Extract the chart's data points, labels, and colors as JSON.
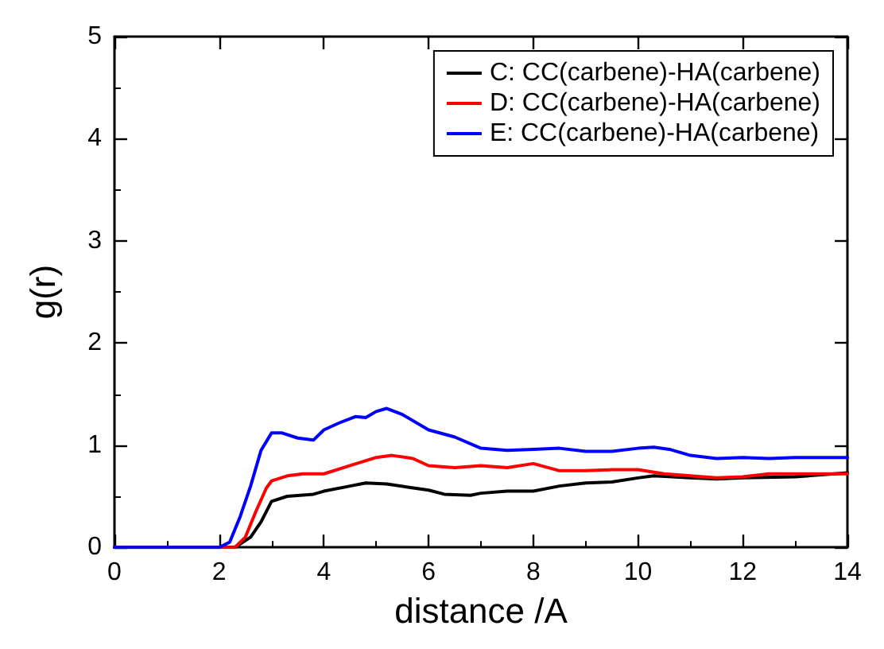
{
  "chart_data": {
    "type": "line",
    "xlabel": "distance /A",
    "ylabel": "g(r)",
    "xlim": [
      0,
      14
    ],
    "ylim": [
      0,
      5
    ],
    "xticks": [
      0,
      2,
      4,
      6,
      8,
      10,
      12,
      14
    ],
    "yticks": [
      0,
      1,
      2,
      3,
      4,
      5
    ],
    "grid": false,
    "legend": "top right",
    "marker": "none",
    "line_style": "solid",
    "series": [
      {
        "name": "C: CC(carbene)-HA(carbene)",
        "color": "#000000",
        "x": [
          0,
          2.3,
          2.6,
          2.8,
          3.0,
          3.3,
          3.8,
          4,
          4.5,
          4.8,
          5.2,
          5.6,
          6,
          6.3,
          6.8,
          7,
          7.5,
          8,
          8.5,
          9,
          9.5,
          10,
          10.3,
          11,
          11.5,
          12,
          13,
          14
        ],
        "values": [
          0,
          0,
          0.1,
          0.25,
          0.45,
          0.5,
          0.52,
          0.55,
          0.6,
          0.63,
          0.62,
          0.59,
          0.56,
          0.52,
          0.51,
          0.53,
          0.55,
          0.55,
          0.6,
          0.63,
          0.64,
          0.68,
          0.7,
          0.68,
          0.67,
          0.68,
          0.69,
          0.73
        ]
      },
      {
        "name": "D: CC(carbene)-HA(carbene)",
        "color": "#ff0000",
        "x": [
          0,
          2.3,
          2.5,
          2.7,
          2.9,
          3.0,
          3.3,
          3.6,
          4,
          4.5,
          5,
          5.3,
          5.7,
          6,
          6.5,
          7,
          7.5,
          8,
          8.5,
          9,
          9.5,
          10,
          10.5,
          11,
          11.5,
          12,
          12.5,
          13,
          14
        ],
        "values": [
          0,
          0,
          0.1,
          0.35,
          0.58,
          0.65,
          0.7,
          0.72,
          0.72,
          0.8,
          0.88,
          0.9,
          0.87,
          0.8,
          0.78,
          0.8,
          0.78,
          0.82,
          0.75,
          0.75,
          0.76,
          0.76,
          0.72,
          0.7,
          0.68,
          0.69,
          0.72,
          0.72,
          0.72
        ]
      },
      {
        "name": "E: CC(carbene)-HA(carbene)",
        "color": "#0000ff",
        "x": [
          0,
          2.0,
          2.2,
          2.4,
          2.6,
          2.8,
          3.0,
          3.2,
          3.5,
          3.8,
          4.0,
          4.3,
          4.6,
          4.8,
          5.0,
          5.2,
          5.5,
          6,
          6.5,
          7,
          7.5,
          8,
          8.5,
          9,
          9.5,
          10,
          10.3,
          10.6,
          11,
          11.5,
          12,
          12.5,
          13,
          14
        ],
        "values": [
          0,
          0,
          0.05,
          0.3,
          0.6,
          0.95,
          1.12,
          1.12,
          1.07,
          1.05,
          1.15,
          1.22,
          1.28,
          1.27,
          1.33,
          1.36,
          1.3,
          1.15,
          1.08,
          0.97,
          0.95,
          0.96,
          0.97,
          0.94,
          0.94,
          0.97,
          0.98,
          0.96,
          0.9,
          0.87,
          0.88,
          0.87,
          0.88,
          0.88
        ]
      }
    ]
  }
}
